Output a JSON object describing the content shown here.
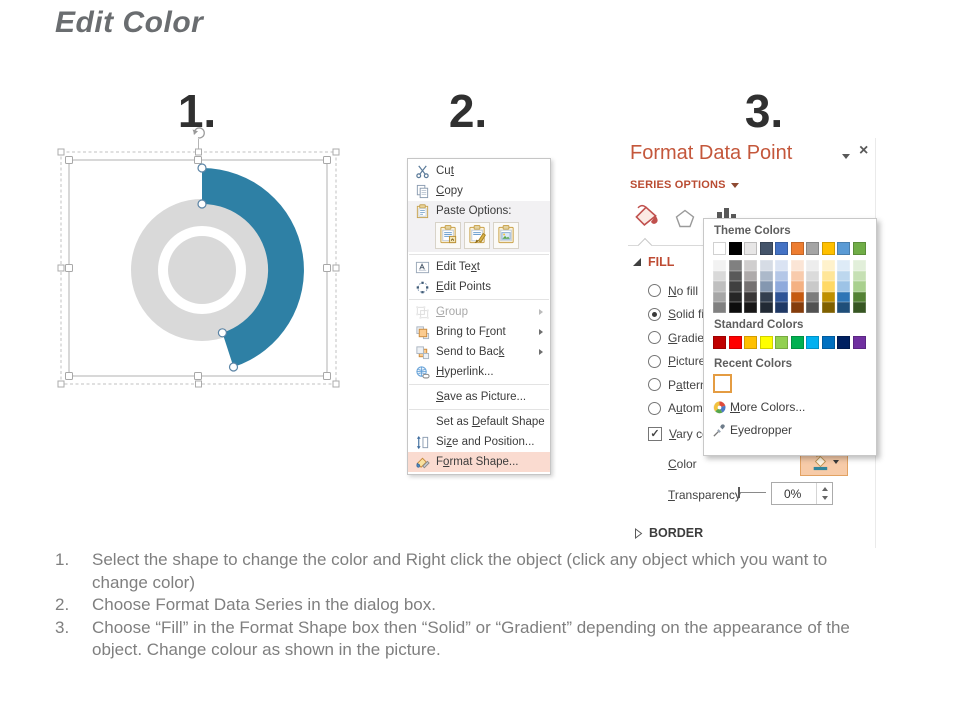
{
  "page_title": "Edit Color",
  "steps": [
    "1.",
    "2.",
    "3."
  ],
  "chart": {
    "arc_color": "#2E80A5",
    "ring_color": "#D9D9D9"
  },
  "context_menu": {
    "items": [
      {
        "id": "cut",
        "label": "Cut",
        "u": 2,
        "icon": "scissors-icon"
      },
      {
        "id": "copy",
        "label": "Copy",
        "u": 0,
        "icon": "copy-icon"
      },
      {
        "id": "paste-options",
        "type": "paste",
        "label": "Paste Options:",
        "icon": "clipboard-icon",
        "buttons": [
          "paste-keep-source-icon",
          "paste-use-theme-icon",
          "paste-picture-icon"
        ]
      },
      {
        "type": "sep"
      },
      {
        "id": "edit-text",
        "label": "Edit Text",
        "u": 7,
        "icon": "edit-text-icon"
      },
      {
        "id": "edit-points",
        "label": "Edit Points",
        "u": 0,
        "icon": "edit-points-icon"
      },
      {
        "type": "sep"
      },
      {
        "id": "group",
        "label": "Group",
        "u": 0,
        "icon": "group-icon",
        "disabled": true,
        "submenu": true
      },
      {
        "id": "bring-to-front",
        "label": "Bring to Front",
        "u": 10,
        "icon": "bring-front-icon",
        "submenu": true
      },
      {
        "id": "send-to-back",
        "label": "Send to Back",
        "u": 11,
        "icon": "send-back-icon",
        "submenu": true
      },
      {
        "id": "hyperlink",
        "label": "Hyperlink...",
        "u": 0,
        "icon": "hyperlink-icon"
      },
      {
        "type": "sep"
      },
      {
        "id": "save-as-picture",
        "label": "Save as Picture...",
        "u": 0
      },
      {
        "type": "sep"
      },
      {
        "id": "set-as-default-shape",
        "label": "Set as Default Shape",
        "u": 7
      },
      {
        "id": "size-and-position",
        "label": "Size and Position...",
        "u": 2,
        "icon": "size-position-icon"
      },
      {
        "id": "format-shape",
        "label": "Format Shape...",
        "u": 1,
        "icon": "format-shape-icon",
        "highlight": true
      }
    ]
  },
  "format_pane": {
    "title": "Format Data Point",
    "series_options_label": "SERIES OPTIONS",
    "fill_header": "FILL",
    "border_header": "BORDER",
    "fill_options": [
      {
        "label": "No fill",
        "u": 0
      },
      {
        "label": "Solid fill",
        "u": 0,
        "selected": true
      },
      {
        "label": "Gradient fill",
        "u": 0
      },
      {
        "label": "Picture or texture fill",
        "u": 0
      },
      {
        "label": "Pattern fill",
        "u": 1
      },
      {
        "label": "Automatic",
        "u": 1
      }
    ],
    "vary_checkbox": {
      "label": "Vary colors by point",
      "u": 0,
      "checked": true
    },
    "color_label": {
      "label": "Color",
      "u": 0
    },
    "transparency": {
      "label": "Transparency",
      "u": 0,
      "value": "0%"
    }
  },
  "color_picker": {
    "theme_label": "Theme Colors",
    "standard_label": "Standard Colors",
    "recent_label": "Recent Colors",
    "more_colors": {
      "label": "More Colors...",
      "u": 0
    },
    "eyedropper": {
      "label": "Eyedropper"
    },
    "theme_colors": [
      "#FFFFFF",
      "#000000",
      "#E7E6E6",
      "#44546A",
      "#4472C4",
      "#ED7D31",
      "#A5A5A5",
      "#FFC000",
      "#5B9BD5",
      "#70AD47"
    ],
    "theme_variants": [
      [
        "#F2F2F2",
        "#D9D9D9",
        "#BFBFBF",
        "#A6A6A6",
        "#808080"
      ],
      [
        "#808080",
        "#595959",
        "#404040",
        "#262626",
        "#0D0D0D"
      ],
      [
        "#D0CECE",
        "#AEAAAA",
        "#757171",
        "#3B3838",
        "#181717"
      ],
      [
        "#D6DCE5",
        "#ACB9CA",
        "#8497B0",
        "#333F50",
        "#222A35"
      ],
      [
        "#DAE3F3",
        "#B4C7E7",
        "#8FAADC",
        "#2F5496",
        "#1F3864"
      ],
      [
        "#FBE5D6",
        "#F8CBAD",
        "#F4B183",
        "#C55A11",
        "#843C0C"
      ],
      [
        "#EDEDED",
        "#DBDBDB",
        "#C9C9C9",
        "#7C7C7C",
        "#525252"
      ],
      [
        "#FFF2CC",
        "#FFE699",
        "#FFD966",
        "#BF9000",
        "#7F6000"
      ],
      [
        "#DEEBF7",
        "#BDD7EE",
        "#9DC3E6",
        "#2E75B6",
        "#1F4E79"
      ],
      [
        "#E2EFDA",
        "#C6E0B4",
        "#A9D08E",
        "#548235",
        "#375623"
      ]
    ],
    "standard_colors": [
      "#C00000",
      "#FF0000",
      "#FFC000",
      "#FFFF00",
      "#92D050",
      "#00B050",
      "#00B0F0",
      "#0070C0",
      "#002060",
      "#7030A0"
    ],
    "recent_colors": [
      "#31859C"
    ]
  },
  "instructions": [
    {
      "num": "1.",
      "text": "Select the shape to change the color and Right click the object (click any object which you want to change color)"
    },
    {
      "num": "2.",
      "text": "Choose Format Data Series in the dialog box."
    },
    {
      "num": "3.",
      "text": "Choose “Fill” in the Format Shape box then “Solid” or “Gradient” depending on the appearance of the object. Change colour as shown in the picture."
    }
  ]
}
